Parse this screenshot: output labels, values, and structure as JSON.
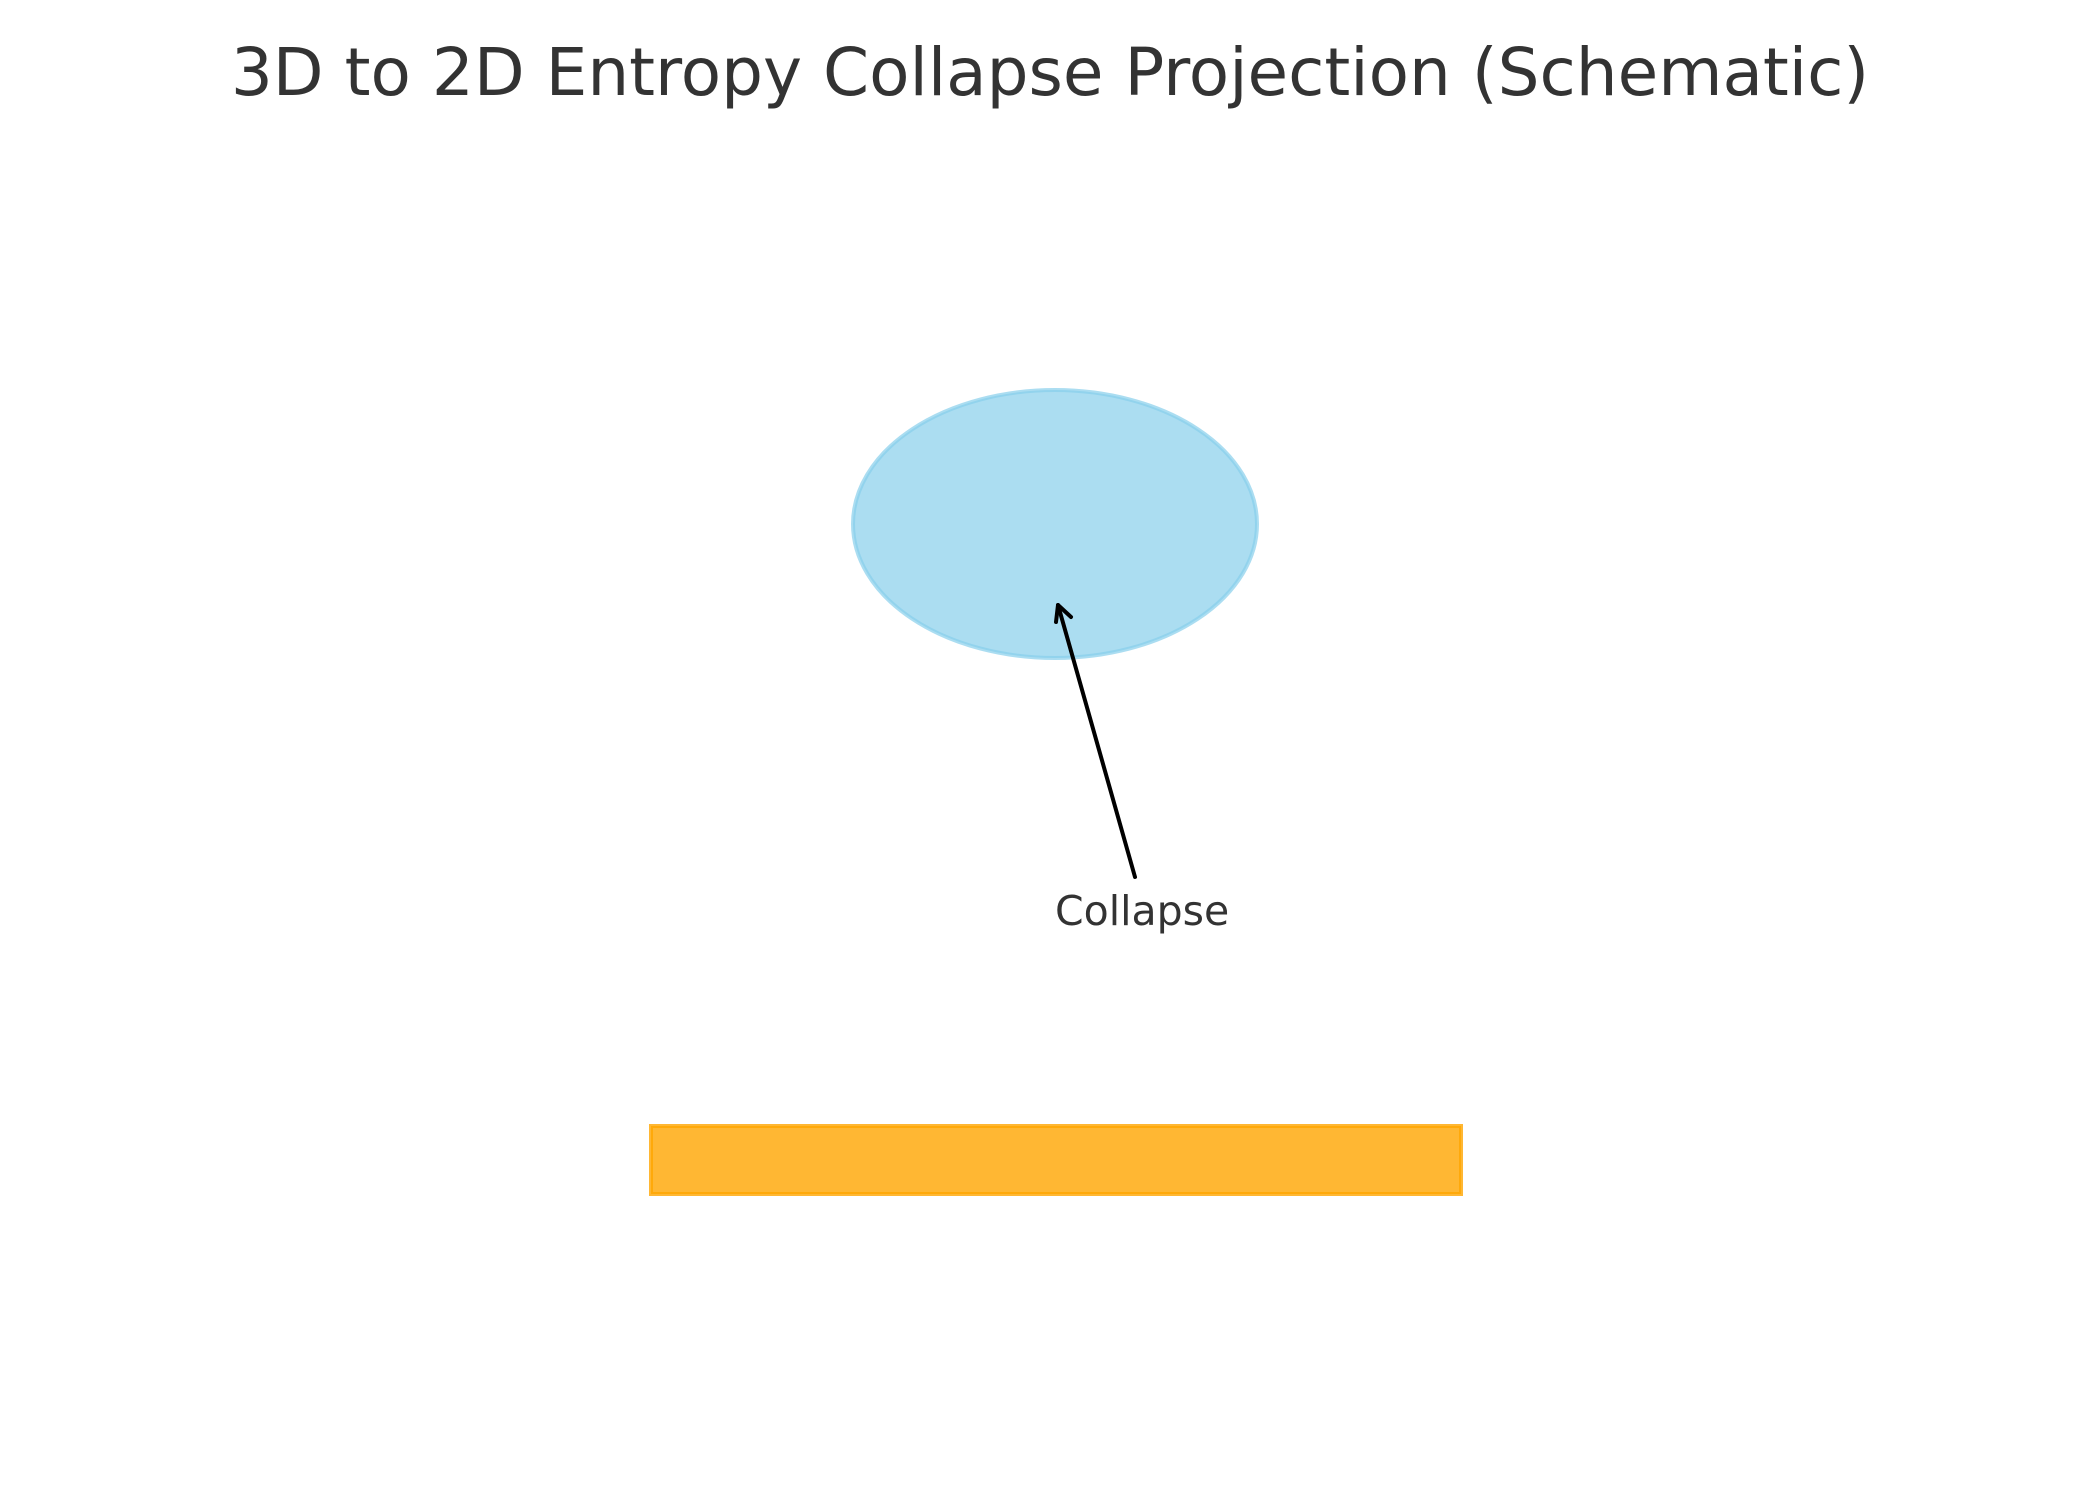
{
  "diagram": {
    "title": "3D to 2D Entropy Collapse Projection (Schematic)",
    "shapes": {
      "volume_3d": {
        "shape": "ellipse",
        "fill": "#87CEEB",
        "stroke": "#87CEEB",
        "opacity": 0.7
      },
      "plane_2d": {
        "shape": "rectangle",
        "fill": "#FFA500",
        "stroke": "#FFA500",
        "opacity": 0.8
      }
    },
    "annotation": {
      "label": "Collapse",
      "arrow_color": "#000000",
      "text_color": "#333333"
    }
  }
}
